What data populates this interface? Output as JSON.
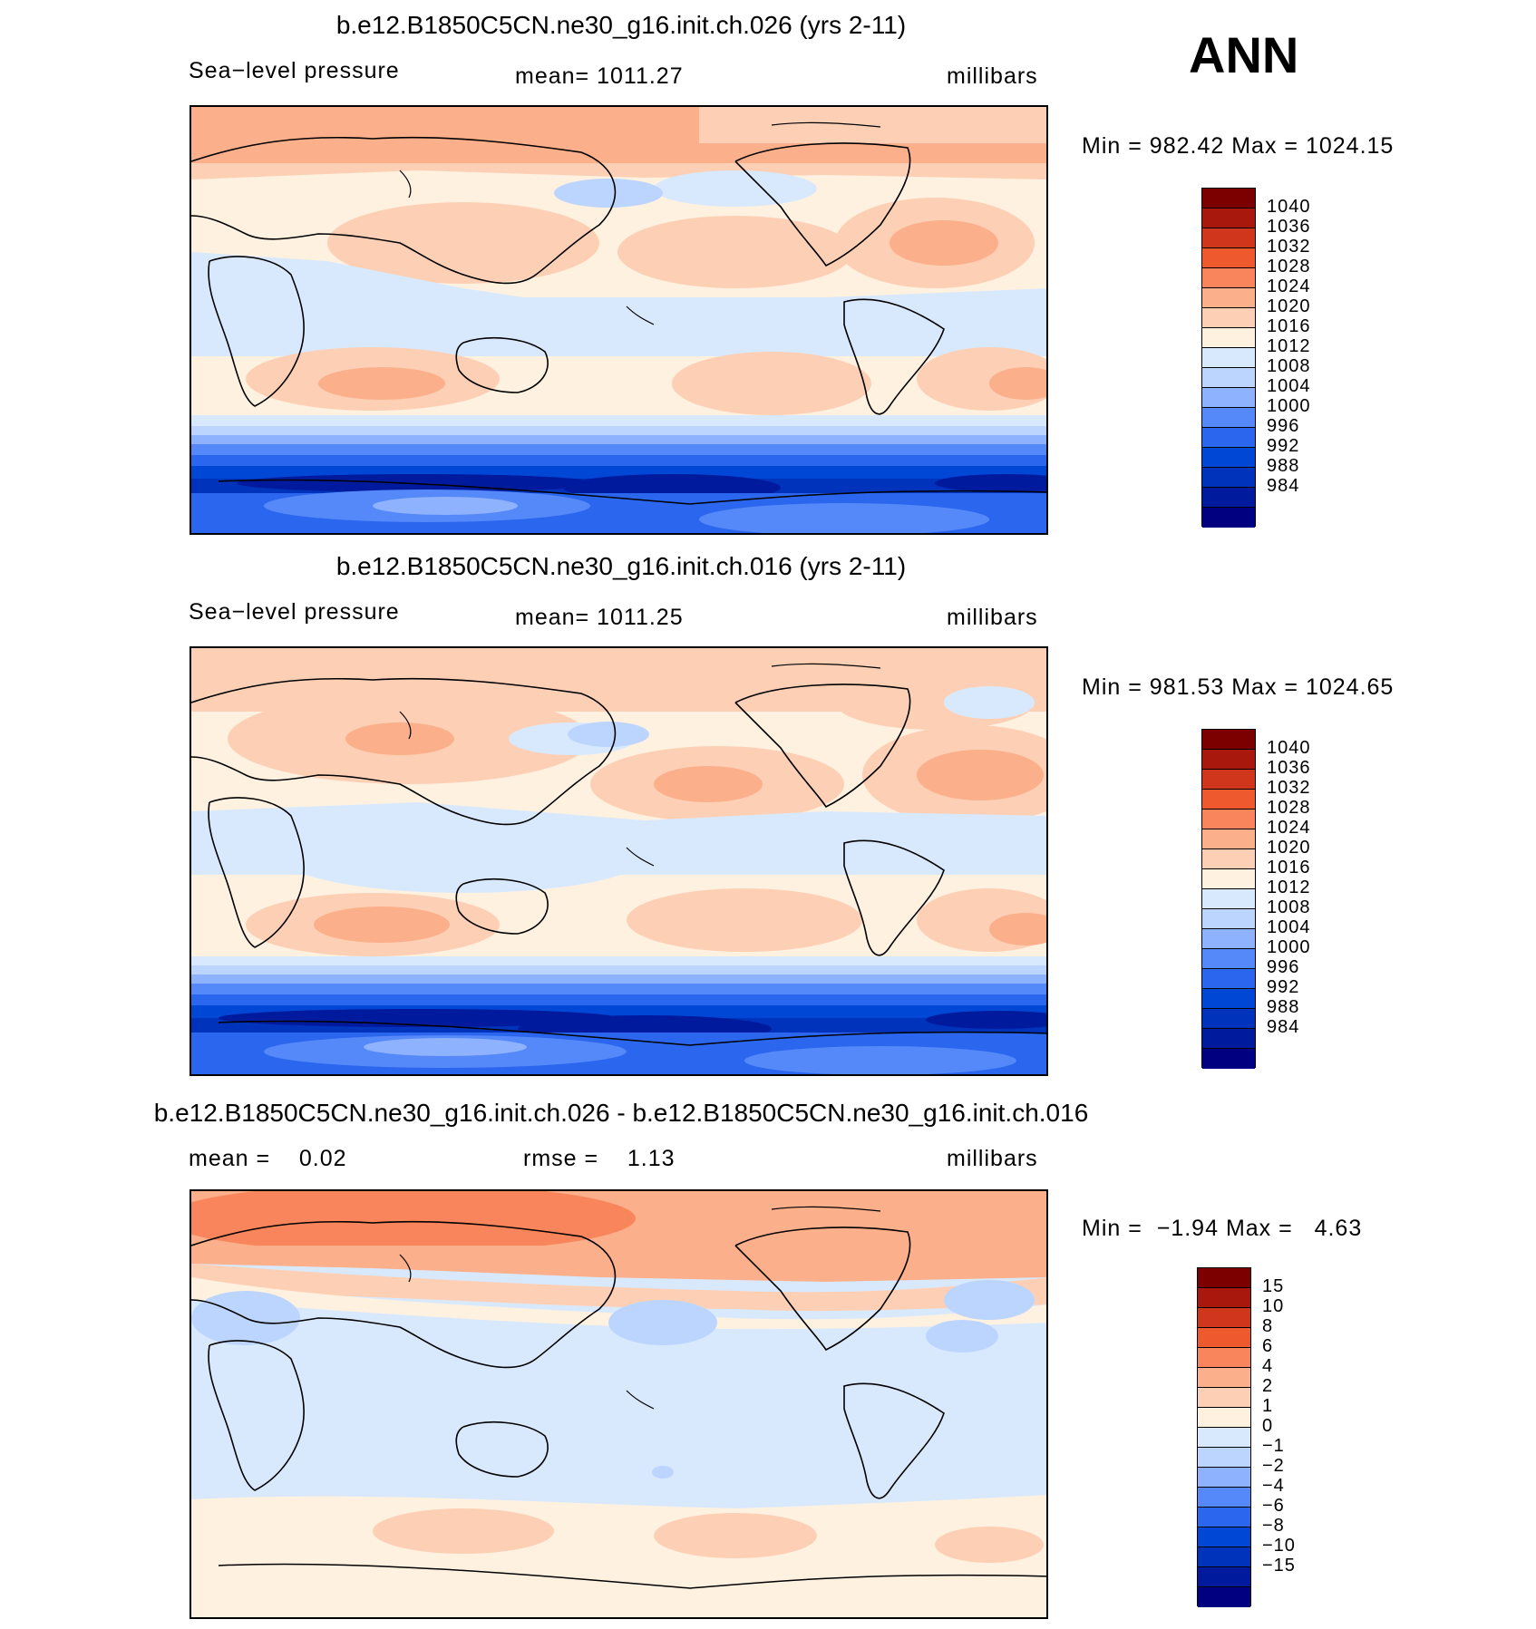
{
  "season": "ANN",
  "colors": {
    "abs": [
      "#000080",
      "#001a9e",
      "#0033bb",
      "#0047d6",
      "#2a66ee",
      "#5588f8",
      "#8fb2ff",
      "#bcd5ff",
      "#d9e9fd",
      "#fef1e0",
      "#fdd0b6",
      "#fbaf8a",
      "#f8855c",
      "#ee5a2e",
      "#d0361b",
      "#a8180d",
      "#7c0000"
    ],
    "diff": [
      "#000080",
      "#001a9e",
      "#0033bb",
      "#0047d6",
      "#2a66ee",
      "#5588f8",
      "#8fb2ff",
      "#bcd5ff",
      "#d9e9fd",
      "#fef1e0",
      "#fdd0b6",
      "#fbaf8a",
      "#f8855c",
      "#ee5a2e",
      "#d0361b",
      "#a8180d",
      "#7c0000"
    ]
  },
  "panels": [
    {
      "title": "b.e12.B1850C5CN.ne30_g16.init.ch.026 (yrs 2-11)",
      "left_label": "Sea−level pressure",
      "mid_label": "mean=",
      "mid_value": "1011.27",
      "units": "millibars",
      "min_label": "Min",
      "min_value": "982.42",
      "max_label": "Max",
      "max_value": "1024.15",
      "colorbar_labels": [
        "1040",
        "1036",
        "1032",
        "1028",
        "1024",
        "1020",
        "1016",
        "1012",
        "1008",
        "1004",
        "1000",
        "996",
        "992",
        "988",
        "984"
      ]
    },
    {
      "title": "b.e12.B1850C5CN.ne30_g16.init.ch.016 (yrs 2-11)",
      "left_label": "Sea−level pressure",
      "mid_label": "mean=",
      "mid_value": "1011.25",
      "units": "millibars",
      "min_label": "Min",
      "min_value": "981.53",
      "max_label": "Max",
      "max_value": "1024.65",
      "colorbar_labels": [
        "1040",
        "1036",
        "1032",
        "1028",
        "1024",
        "1020",
        "1016",
        "1012",
        "1008",
        "1004",
        "1000",
        "996",
        "992",
        "988",
        "984"
      ]
    },
    {
      "title": "b.e12.B1850C5CN.ne30_g16.init.ch.026 - b.e12.B1850C5CN.ne30_g16.init.ch.016",
      "left_label": "mean =",
      "left_value": "0.02",
      "mid_label": "rmse =",
      "mid_value": "1.13",
      "units": "millibars",
      "min_label": "Min",
      "min_value": "−1.94",
      "max_label": "Max",
      "max_value": "4.63",
      "colorbar_labels": [
        "15",
        "10",
        "8",
        "6",
        "4",
        "2",
        "1",
        "0",
        "−1",
        "−2",
        "−4",
        "−6",
        "−8",
        "−10",
        "−15"
      ]
    }
  ]
}
